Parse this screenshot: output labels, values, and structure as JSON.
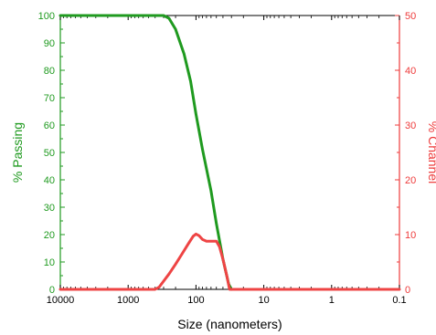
{
  "chart_data": {
    "type": "line",
    "title": "",
    "xlabel": "Size (nanometers)",
    "x_scale": "log",
    "x_reversed": true,
    "xlim": [
      10000,
      0.1
    ],
    "xtick_labels": [
      "10000",
      "1000",
      "100",
      "10",
      "1",
      "0.1"
    ],
    "xtick_values": [
      10000,
      1000,
      100,
      10,
      1,
      0.1
    ],
    "y_left": {
      "label": "% Passing",
      "color": "#1f9a1f",
      "ylim": [
        0,
        100
      ],
      "tick_labels": [
        "0",
        "10",
        "20",
        "30",
        "40",
        "50",
        "60",
        "70",
        "80",
        "90",
        "100"
      ],
      "tick_values": [
        0,
        10,
        20,
        30,
        40,
        50,
        60,
        70,
        80,
        90,
        100
      ]
    },
    "y_right": {
      "label": "% Channel",
      "color": "#ee3b3b",
      "ylim": [
        0,
        50
      ],
      "tick_labels": [
        "0",
        "10",
        "20",
        "30",
        "40",
        "50"
      ],
      "tick_values": [
        0,
        10,
        20,
        30,
        40,
        50
      ]
    },
    "series": [
      {
        "axis": "left",
        "color": "#1f9a1f",
        "x": [
          10000,
          300,
          250,
          200,
          150,
          120,
          100,
          80,
          60,
          50,
          40,
          33,
          30
        ],
        "y": [
          100,
          100,
          99,
          95,
          86,
          76,
          64,
          51,
          36,
          24,
          11,
          2,
          0
        ]
      },
      {
        "axis": "right",
        "color": "#ee4444",
        "x": [
          10000,
          400,
          350,
          300,
          250,
          200,
          160,
          130,
          110,
          100,
          90,
          80,
          70,
          60,
          50,
          45,
          40,
          35,
          32,
          0.1
        ],
        "y": [
          0,
          0,
          0.4,
          1.5,
          2.8,
          4.6,
          6.5,
          8.3,
          9.7,
          10.1,
          9.8,
          9.1,
          8.8,
          8.8,
          8.8,
          7.8,
          5.5,
          2.4,
          0,
          0
        ]
      }
    ]
  }
}
